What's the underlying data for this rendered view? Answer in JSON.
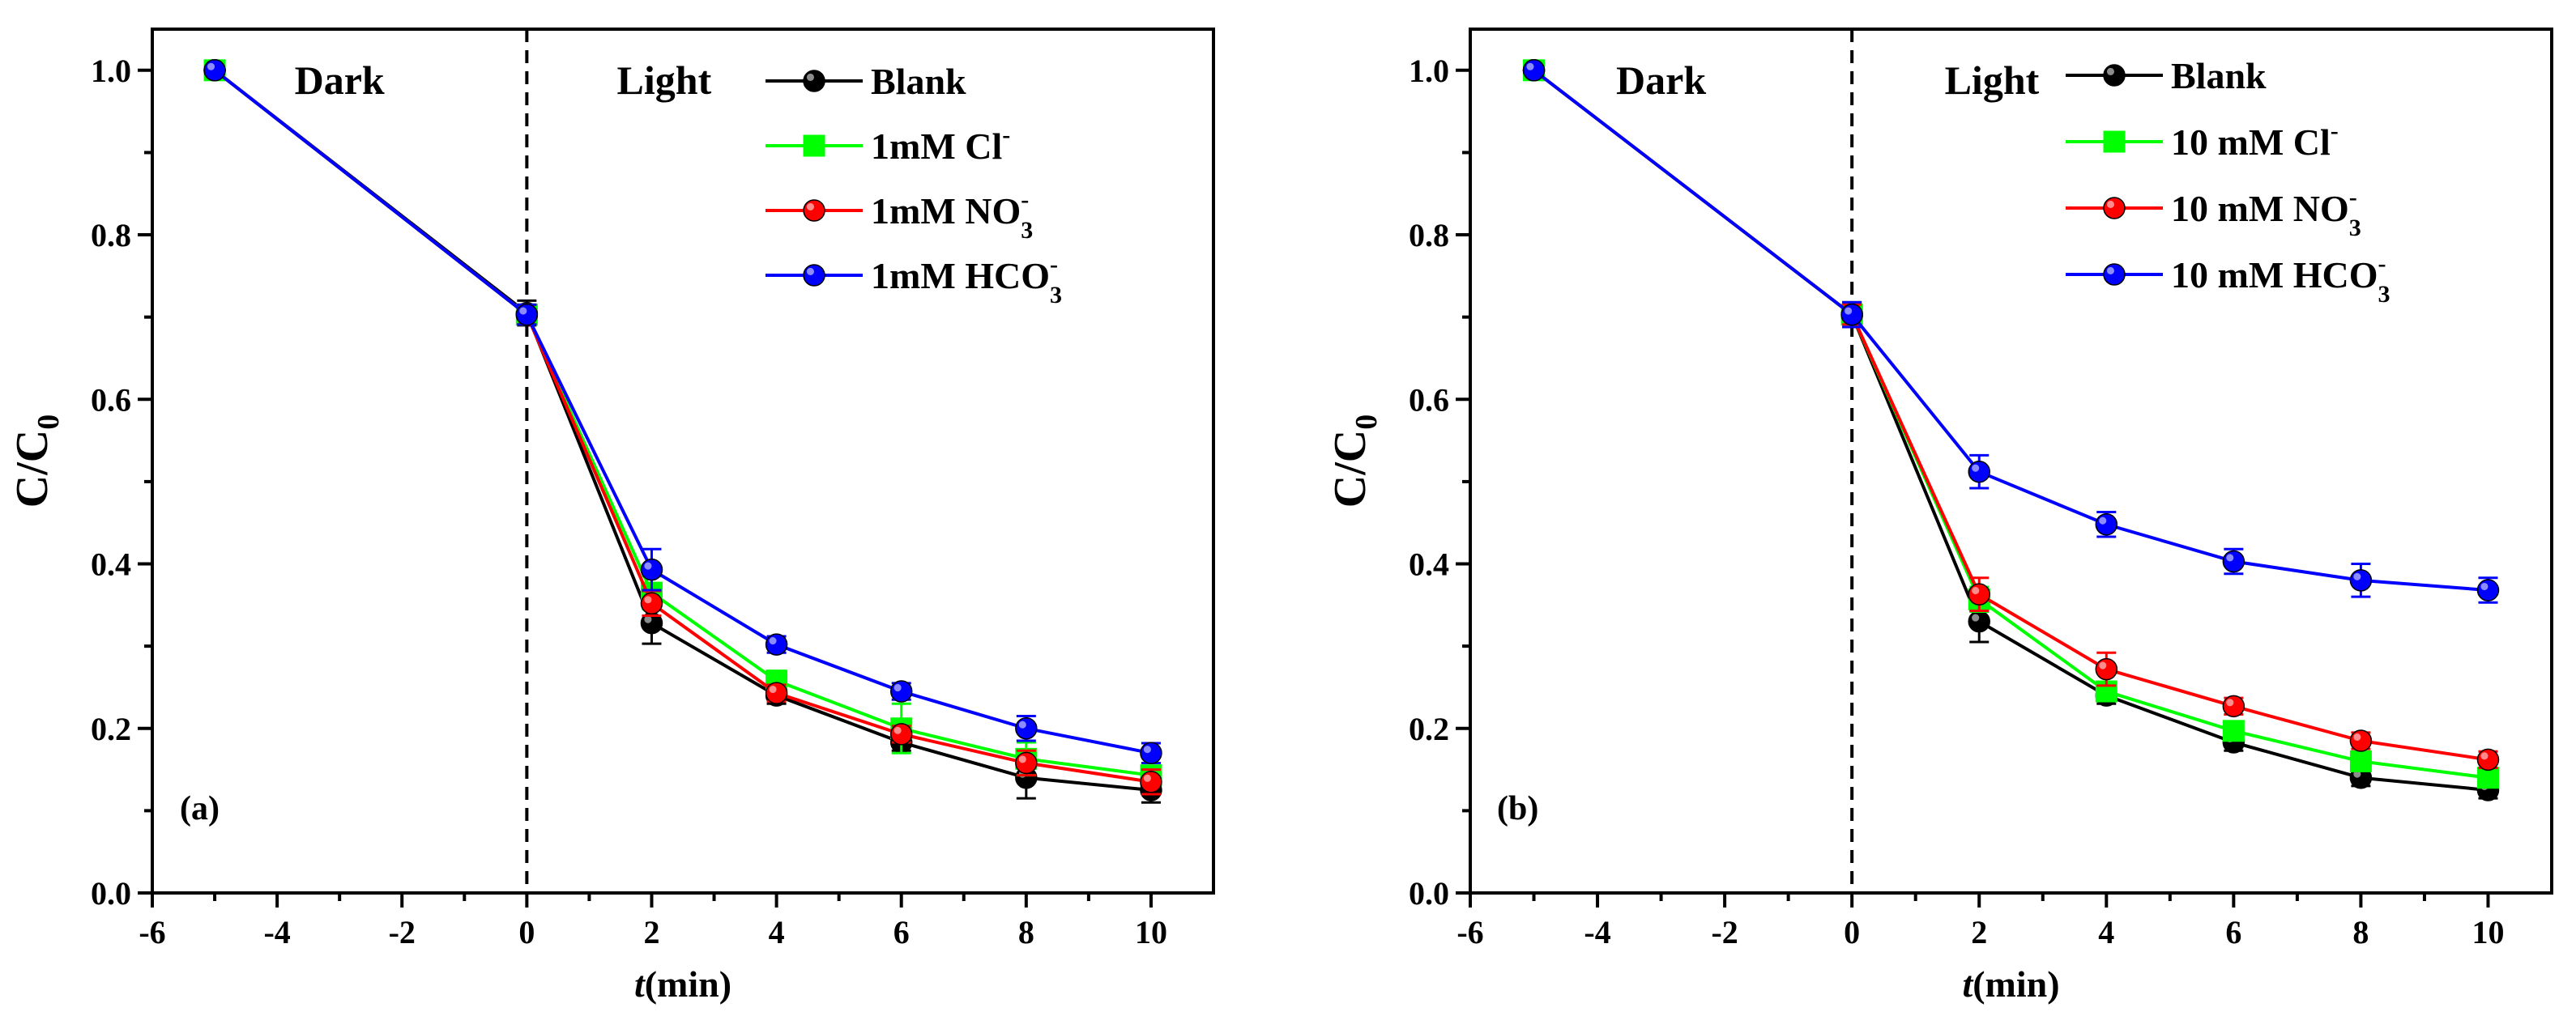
{
  "chart_data": [
    {
      "type": "line",
      "panel_label": "(a)",
      "xlabel_italic": "t",
      "xlabel_rest": "(min)",
      "ylabel_main": "C/C",
      "ylabel_sub": "0",
      "xlim": [
        -6,
        11
      ],
      "ylim": [
        0.0,
        1.05
      ],
      "xticks": [
        -6,
        -4,
        -2,
        0,
        2,
        4,
        6,
        8,
        10
      ],
      "yticks": [
        0.0,
        0.2,
        0.4,
        0.6,
        0.8,
        1.0
      ],
      "xtick_labels": [
        "-6",
        "-4",
        "-2",
        "0",
        "2",
        "4",
        "6",
        "8",
        "10"
      ],
      "ytick_labels": [
        "0.0",
        "0.2",
        "0.4",
        "0.6",
        "0.8",
        "1.0"
      ],
      "divider_x": 0,
      "region_labels": {
        "dark": "Dark",
        "light": "Light"
      },
      "x": [
        -5,
        0,
        2,
        4,
        6,
        8,
        10
      ],
      "series": [
        {
          "name": "Blank",
          "name_base": "Blank",
          "name_sub": "",
          "name_sup": "",
          "color": "#000000",
          "marker": "circle",
          "values": [
            1.0,
            0.705,
            0.328,
            0.24,
            0.183,
            0.14,
            0.125
          ],
          "errors": [
            0.0,
            0.015,
            0.025,
            0.01,
            0.01,
            0.025,
            0.015
          ]
        },
        {
          "name": "1mM Cl-",
          "name_base": "1mM Cl",
          "name_sub": "",
          "name_sup": "-",
          "color": "#00ff00",
          "marker": "square",
          "values": [
            1.0,
            0.703,
            0.365,
            0.258,
            0.2,
            0.163,
            0.143
          ],
          "errors": [
            0.0,
            0.012,
            0.02,
            0.012,
            0.03,
            0.02,
            0.01
          ]
        },
        {
          "name": "1mM NO3-",
          "name_base": "1mM NO",
          "name_sub": "3",
          "name_sup": "-",
          "color": "#ff0000",
          "marker": "circle",
          "values": [
            1.0,
            0.703,
            0.352,
            0.243,
            0.193,
            0.158,
            0.135
          ],
          "errors": [
            0.0,
            0.012,
            0.015,
            0.01,
            0.01,
            0.015,
            0.015
          ]
        },
        {
          "name": "1mM HCO3-",
          "name_base": "1mM HCO",
          "name_sub": "3",
          "name_sup": "-",
          "color": "#0000ff",
          "marker": "circle",
          "values": [
            1.0,
            0.703,
            0.393,
            0.302,
            0.245,
            0.2,
            0.17
          ],
          "errors": [
            0.0,
            0.012,
            0.025,
            0.01,
            0.01,
            0.015,
            0.012
          ]
        }
      ]
    },
    {
      "type": "line",
      "panel_label": "(b)",
      "xlabel_italic": "t",
      "xlabel_rest": "(min)",
      "ylabel_main": "C/C",
      "ylabel_sub": "0",
      "xlim": [
        -6,
        11
      ],
      "ylim": [
        0.0,
        1.05
      ],
      "xticks": [
        -6,
        -4,
        -2,
        0,
        2,
        4,
        6,
        8,
        10
      ],
      "yticks": [
        0.0,
        0.2,
        0.4,
        0.6,
        0.8,
        1.0
      ],
      "xtick_labels": [
        "-6",
        "-4",
        "-2",
        "0",
        "2",
        "4",
        "6",
        "8",
        "10"
      ],
      "ytick_labels": [
        "0.0",
        "0.2",
        "0.4",
        "0.6",
        "0.8",
        "1.0"
      ],
      "divider_x": 0,
      "region_labels": {
        "dark": "Dark",
        "light": "Light"
      },
      "x": [
        -5,
        0,
        2,
        4,
        6,
        8,
        10
      ],
      "series": [
        {
          "name": "Blank",
          "name_base": "Blank",
          "name_sub": "",
          "name_sup": "",
          "color": "#000000",
          "marker": "circle",
          "values": [
            1.0,
            0.703,
            0.33,
            0.24,
            0.183,
            0.14,
            0.125
          ],
          "errors": [
            0.0,
            0.015,
            0.025,
            0.01,
            0.01,
            0.01,
            0.01
          ]
        },
        {
          "name": "10 mM Cl-",
          "name_base": "10 mM Cl",
          "name_sub": "",
          "name_sup": "-",
          "color": "#00ff00",
          "marker": "square",
          "values": [
            1.0,
            0.703,
            0.357,
            0.245,
            0.197,
            0.16,
            0.14
          ],
          "errors": [
            0.0,
            0.012,
            0.015,
            0.01,
            0.01,
            0.01,
            0.01
          ]
        },
        {
          "name": "10 mM NO3-",
          "name_base": "10 mM NO",
          "name_sub": "3",
          "name_sup": "-",
          "color": "#ff0000",
          "marker": "circle",
          "values": [
            1.0,
            0.703,
            0.363,
            0.272,
            0.227,
            0.185,
            0.162
          ],
          "errors": [
            0.0,
            0.012,
            0.02,
            0.02,
            0.01,
            0.01,
            0.01
          ]
        },
        {
          "name": "10 mM HCO3-",
          "name_base": "10 mM HCO",
          "name_sub": "3",
          "name_sup": "-",
          "color": "#0000ff",
          "marker": "circle",
          "values": [
            1.0,
            0.703,
            0.512,
            0.448,
            0.403,
            0.38,
            0.368
          ],
          "errors": [
            0.0,
            0.015,
            0.02,
            0.015,
            0.015,
            0.02,
            0.015
          ]
        }
      ]
    }
  ]
}
